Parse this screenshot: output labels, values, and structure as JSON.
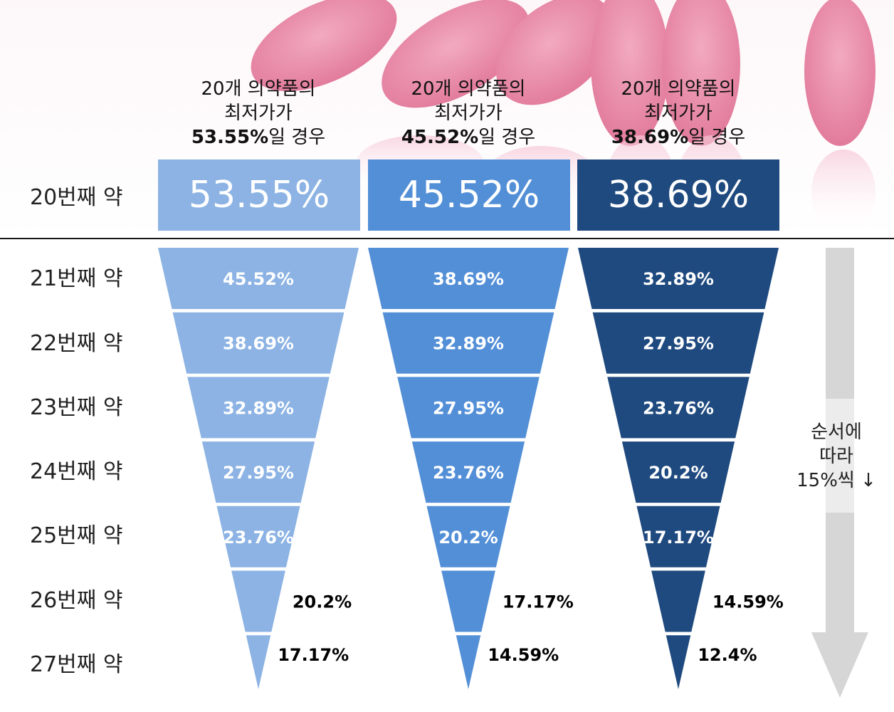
{
  "colors": {
    "series_1": "#8cb3e4",
    "series_2": "#538fd7",
    "series_3": "#1f4a7f",
    "arrow": "#d6d6d6",
    "pill_bg": "#fbe3ec",
    "pill_shade": "#e98cab"
  },
  "headers": [
    {
      "line1": "20개 의약품의",
      "line2": "최저가가",
      "pct": "53.55%",
      "suffix": "일 경우"
    },
    {
      "line1": "20개 의약품의",
      "line2": "최저가가",
      "pct": "45.52%",
      "suffix": "일 경우"
    },
    {
      "line1": "20개 의약품의",
      "line2": "최저가가",
      "pct": "38.69%",
      "suffix": "일 경우"
    }
  ],
  "row_labels": [
    "20번째 약",
    "21번째 약",
    "22번째 약",
    "23번째 약",
    "24번째 약",
    "25번째 약",
    "26번째 약",
    "27번째 약"
  ],
  "top_values": [
    "53.55%",
    "45.52%",
    "38.69%"
  ],
  "note": {
    "line1": "순서에",
    "line2": "따라",
    "line3": "15%씩 ↓"
  },
  "chart_data": {
    "type": "table",
    "categories": [
      "20번째 약",
      "21번째 약",
      "22번째 약",
      "23번째 약",
      "24번째 약",
      "25번째 약",
      "26번째 약",
      "27번째 약"
    ],
    "series": [
      {
        "values": [
          53.55,
          45.52,
          38.69,
          32.89,
          27.95,
          23.76,
          20.2,
          17.17
        ],
        "labels": [
          "53.55%",
          "45.52%",
          "38.69%",
          "32.89%",
          "27.95%",
          "23.76%",
          "20.2%",
          "17.17%"
        ]
      },
      {
        "values": [
          45.52,
          38.69,
          32.89,
          27.95,
          23.76,
          20.2,
          17.17,
          14.59
        ],
        "labels": [
          "45.52%",
          "38.69%",
          "32.89%",
          "27.95%",
          "23.76%",
          "20.2%",
          "17.17%",
          "14.59%"
        ]
      },
      {
        "values": [
          38.69,
          32.89,
          27.95,
          23.76,
          20.2,
          17.17,
          14.59,
          12.4
        ],
        "labels": [
          "38.69%",
          "32.89%",
          "27.95%",
          "23.76%",
          "20.2%",
          "17.17%",
          "14.59%",
          "12.4%"
        ]
      }
    ]
  }
}
